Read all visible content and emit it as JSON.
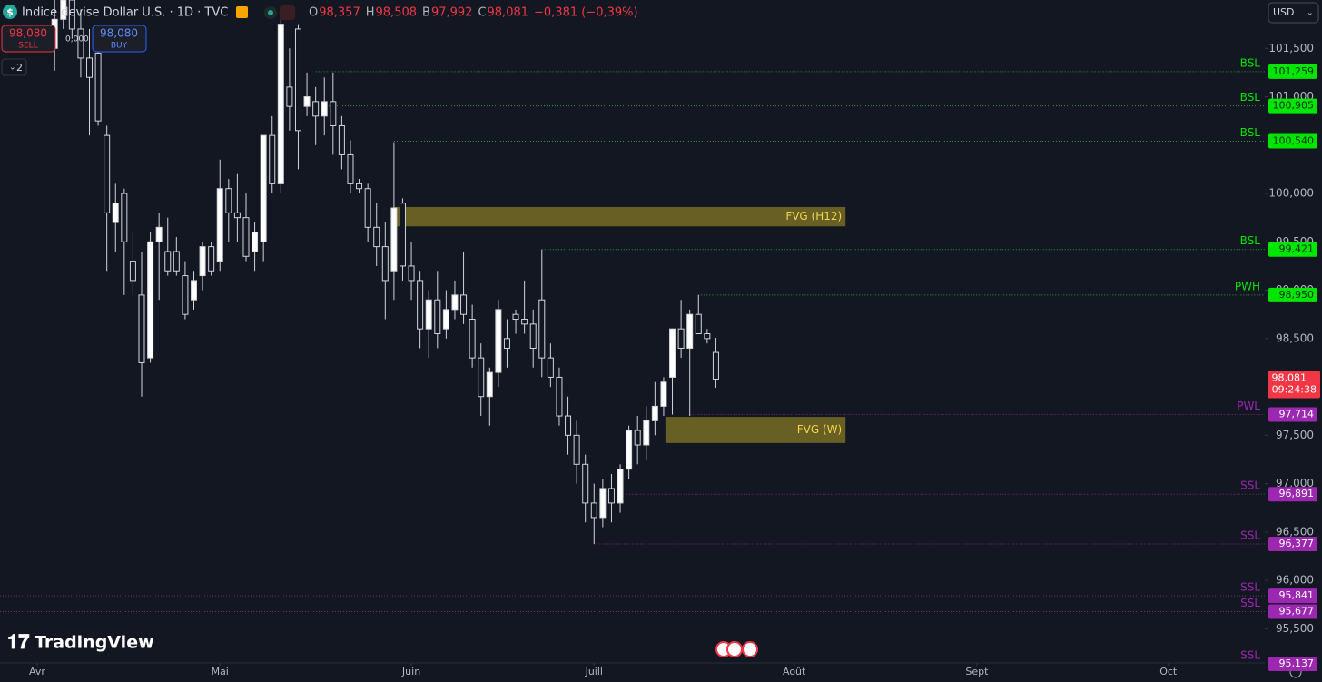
{
  "header": {
    "symbol": "Indice devise Dollar U.S. · 1D · TVC",
    "ohlc": [
      {
        "key": "O",
        "value": "98,357"
      },
      {
        "key": "H",
        "value": "98,508"
      },
      {
        "key": "B",
        "value": "97,992"
      },
      {
        "key": "C",
        "value": "98,081"
      }
    ],
    "change": "−0,381 (−0,39%)",
    "sell": {
      "price": "98,080",
      "label": "SELL"
    },
    "buy": {
      "price": "98,080",
      "label": "BUY"
    },
    "spread": "0,000",
    "badge": "2",
    "currency": "USD",
    "brand": "TradingView"
  },
  "chart_data": {
    "type": "candlestick",
    "x": [
      2,
      3,
      4,
      5,
      6,
      7,
      8,
      9,
      10,
      11,
      12,
      13,
      14,
      15,
      16,
      17,
      18,
      19,
      20,
      21,
      22,
      23,
      24,
      25,
      26,
      27,
      28,
      29,
      30,
      31,
      32,
      33,
      34,
      35,
      36,
      37,
      38,
      39,
      40,
      41,
      42,
      43,
      44,
      45,
      46,
      47,
      48,
      49,
      50,
      51,
      52,
      53,
      54,
      55,
      56,
      57,
      58,
      59,
      60,
      61,
      62,
      63,
      64,
      65,
      66,
      67,
      68,
      69,
      70,
      71,
      72,
      73,
      74,
      75,
      76,
      77,
      78
    ],
    "open": [
      101500,
      101800,
      102000,
      101700,
      101400,
      101450,
      100600,
      99700,
      100000,
      99300,
      98950,
      98300,
      99500,
      99400,
      99400,
      99150,
      98900,
      99150,
      99450,
      99300,
      100050,
      99800,
      99750,
      99400,
      99500,
      100600,
      100100,
      101100,
      101700,
      100900,
      100950,
      100800,
      100950,
      100700,
      100400,
      100100,
      100050,
      99650,
      99450,
      99200,
      99900,
      99250,
      99100,
      98600,
      98900,
      98600,
      98800,
      98950,
      98700,
      98300,
      97900,
      98150,
      98500,
      98750,
      98700,
      98650,
      98900,
      98300,
      98100,
      97700,
      97500,
      97200,
      96800,
      96650,
      96950,
      96800,
      97150,
      97550,
      97400,
      97650,
      97800,
      98100,
      98600,
      98400,
      98750,
      98550,
      98357
    ],
    "high": [
      102050,
      102050,
      102050,
      101900,
      101700,
      101600,
      100700,
      100100,
      100050,
      99600,
      99400,
      99600,
      99800,
      99750,
      99550,
      99300,
      99200,
      99500,
      99500,
      100350,
      100150,
      100200,
      100000,
      99700,
      100600,
      100800,
      101800,
      101500,
      101750,
      101250,
      101100,
      101200,
      101250,
      100800,
      100550,
      100150,
      100100,
      99900,
      99700,
      100530,
      99950,
      99500,
      99200,
      99000,
      99200,
      99000,
      99100,
      99400,
      98850,
      98450,
      98200,
      98900,
      98700,
      98800,
      99100,
      98800,
      99421,
      98450,
      98200,
      97900,
      97650,
      97300,
      97000,
      97050,
      97100,
      97200,
      97600,
      97700,
      97800,
      98050,
      98100,
      98600,
      98900,
      98800,
      98950,
      98600,
      98508
    ],
    "low": [
      101270,
      101700,
      101600,
      101200,
      100600,
      100700,
      99200,
      99400,
      98950,
      98950,
      97900,
      98250,
      98900,
      99150,
      99150,
      98700,
      98800,
      99000,
      99150,
      99200,
      99500,
      99500,
      99300,
      99200,
      99300,
      100000,
      100000,
      100650,
      100250,
      100800,
      100500,
      100600,
      100400,
      100250,
      100000,
      100000,
      99500,
      99250,
      98700,
      98900,
      99100,
      98900,
      98400,
      98300,
      98400,
      98500,
      98700,
      98650,
      98200,
      97700,
      97600,
      98000,
      98200,
      98550,
      98550,
      98200,
      98100,
      98000,
      97600,
      97300,
      97000,
      96600,
      96377,
      96550,
      96600,
      96700,
      97050,
      97200,
      97250,
      97500,
      97700,
      97714,
      98300,
      97700,
      98550,
      98450,
      97992
    ],
    "close": [
      101800,
      102000,
      101700,
      101400,
      101200,
      100750,
      99800,
      99900,
      99500,
      99100,
      98250,
      99500,
      99650,
      99200,
      99200,
      98750,
      99100,
      99450,
      99200,
      100050,
      99800,
      99750,
      99350,
      99600,
      100600,
      100100,
      101750,
      100900,
      100650,
      101000,
      100800,
      100950,
      100700,
      100400,
      100100,
      100050,
      99650,
      99450,
      99100,
      99850,
      99250,
      99100,
      98600,
      98900,
      98550,
      98800,
      98950,
      98750,
      98300,
      97900,
      98150,
      98800,
      98400,
      98700,
      98650,
      98400,
      98300,
      98100,
      97700,
      97500,
      97200,
      96800,
      96650,
      96950,
      96800,
      97150,
      97550,
      97400,
      97650,
      97800,
      98050,
      98600,
      98400,
      98750,
      98550,
      98500,
      98081
    ],
    "up_color": "#ffffff",
    "down_color": "#131722",
    "wick_color": "#d1d4dc",
    "xlim": [
      -4.28,
      141.3
    ],
    "ylim": [
      95100,
      102000
    ],
    "xticks": [
      {
        "value": 0,
        "label": "Avr"
      },
      {
        "value": 21,
        "label": "Mai"
      },
      {
        "value": 43,
        "label": "Juin"
      },
      {
        "value": 64,
        "label": "Juill"
      },
      {
        "value": 87,
        "label": "Août"
      },
      {
        "value": 108,
        "label": "Sept"
      },
      {
        "value": 130,
        "label": "Oct"
      }
    ],
    "yticks": [
      {
        "value": 101500,
        "label": "101,500"
      },
      {
        "value": 101000,
        "label": "101,000"
      },
      {
        "value": 100000,
        "label": "100,000"
      },
      {
        "value": 99500,
        "label": "99,500"
      },
      {
        "value": 99000,
        "label": "99,000"
      },
      {
        "value": 98500,
        "label": "98,500"
      },
      {
        "value": 97500,
        "label": "97,500"
      },
      {
        "value": 97000,
        "label": "97,000"
      },
      {
        "value": 96500,
        "label": "96,500"
      },
      {
        "value": 96000,
        "label": "96,000"
      },
      {
        "value": 95500,
        "label": "95,500"
      }
    ],
    "levels": [
      {
        "name": "BSL",
        "value": 101259,
        "value_label": "101,259",
        "start": 32,
        "color": "#00e600",
        "line_color": "#2e9e3a"
      },
      {
        "name": "BSL",
        "value": 100905,
        "value_label": "100,905",
        "start": 33.5,
        "color": "#00e600",
        "line_color": "#2e9e3a"
      },
      {
        "name": "BSL",
        "value": 100540,
        "value_label": "100,540",
        "start": 41,
        "color": "#00e600",
        "line_color": "#2e9e3a"
      },
      {
        "name": "BSL",
        "value": 99421,
        "value_label": "99,421",
        "start": 58,
        "color": "#00e600",
        "line_color": "#2e9e3a"
      },
      {
        "name": "PWH",
        "value": 98950,
        "value_label": "98,950",
        "start": 76,
        "color": "#00e600",
        "line_color": "#2e9e3a"
      },
      {
        "name": "PWL",
        "value": 97714,
        "value_label": "97,714",
        "start": 75,
        "color": "#9c27b0",
        "line_color": "#7b2a8c"
      },
      {
        "name": "SSL",
        "value": 96891,
        "value_label": "96,891",
        "start": 67.7,
        "color": "#9c27b0",
        "line_color": "#7b2a8c"
      },
      {
        "name": "SSL",
        "value": 96377,
        "value_label": "96,377",
        "start": 64,
        "color": "#9c27b0",
        "line_color": "#7b2a8c"
      },
      {
        "name": "SSL",
        "value": 95841,
        "value_label": "95,841",
        "start": -4.28,
        "color": "#9c27b0",
        "line_color": "#7b2a8c"
      },
      {
        "name": "SSL",
        "value": 95677,
        "value_label": "95,677",
        "start": -4.28,
        "color": "#9c27b0",
        "line_color": "#7b2a8c"
      },
      {
        "name": "SSL",
        "value": 95137,
        "value_label": "95,137",
        "start": null,
        "color": "#9c27b0",
        "line_color": "#7b2a8c"
      }
    ],
    "zones": [
      {
        "label": "FVG (H12)",
        "top": 99860,
        "bottom": 99660,
        "start": 41,
        "end": 92.9,
        "color": "#6b6325"
      },
      {
        "label": "FVG (W)",
        "top": 97690,
        "bottom": 97420,
        "start": 72.2,
        "end": 92.9,
        "color": "#6b6325"
      }
    ],
    "last_price": {
      "value": 98081,
      "value_label": "98,081",
      "countdown": "09:24:38",
      "color": "#f23645"
    }
  }
}
